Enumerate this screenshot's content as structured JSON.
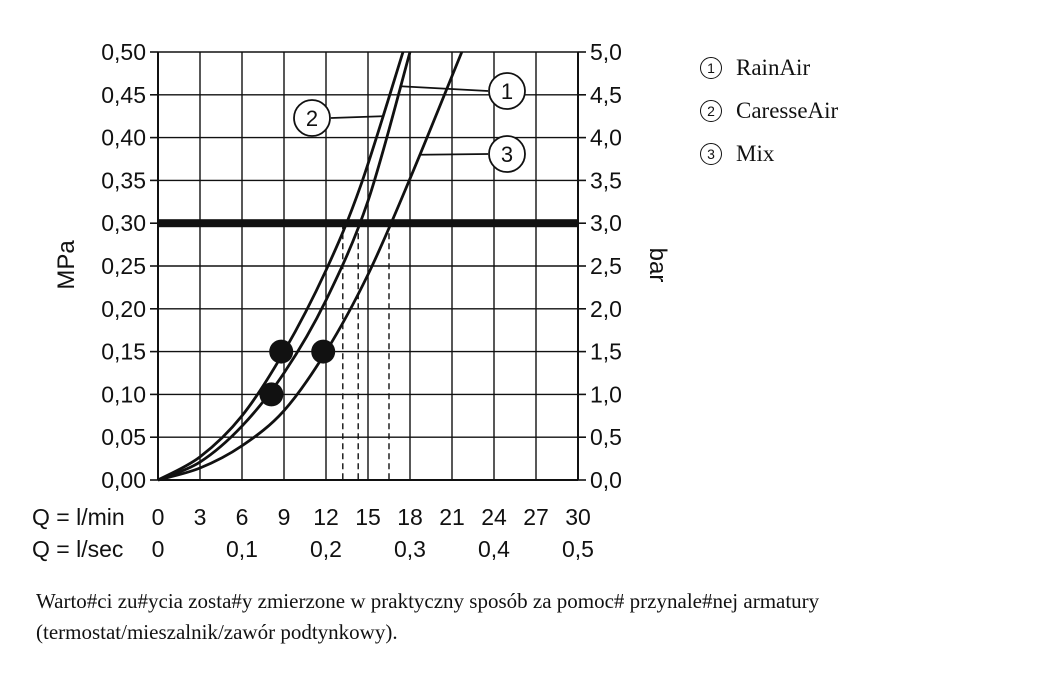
{
  "chart_data": {
    "type": "line",
    "xlabel_rows": [
      {
        "label": "Q = l/min",
        "ticks": [
          "0",
          "3",
          "6",
          "9",
          "12",
          "15",
          "18",
          "21",
          "24",
          "27",
          "30"
        ]
      },
      {
        "label": "Q = l/sec",
        "ticks": [
          "0",
          "0,1",
          "0,2",
          "0,3",
          "0,4",
          "0,5"
        ]
      }
    ],
    "ylabel_left": "MPa",
    "ylabel_right": "bar",
    "y_ticks_left": [
      "0,00",
      "0,05",
      "0,10",
      "0,15",
      "0,20",
      "0,25",
      "0,30",
      "0,35",
      "0,40",
      "0,45",
      "0,50"
    ],
    "y_ticks_right": [
      "0,0",
      "0,5",
      "1,0",
      "1,5",
      "2,0",
      "2,5",
      "3,0",
      "3,5",
      "4,0",
      "4,5",
      "5,0"
    ],
    "xlim": [
      0,
      30
    ],
    "ylim": [
      0,
      0.5
    ],
    "grid": true,
    "reference_line_y": 0.3,
    "series": [
      {
        "name": "1",
        "x": [
          0,
          3,
          6,
          9,
          12,
          15,
          18
        ],
        "y": [
          0,
          0.021,
          0.063,
          0.125,
          0.21,
          0.326,
          0.5
        ]
      },
      {
        "name": "2",
        "x": [
          0,
          3,
          6,
          9,
          12,
          14.5,
          17.5
        ],
        "y": [
          0,
          0.027,
          0.075,
          0.15,
          0.245,
          0.345,
          0.5
        ]
      },
      {
        "name": "3",
        "x": [
          0,
          3,
          6,
          9,
          12,
          15,
          18,
          21.7
        ],
        "y": [
          0,
          0.014,
          0.04,
          0.081,
          0.15,
          0.24,
          0.352,
          0.5
        ]
      }
    ],
    "markers": [
      {
        "series": "2",
        "x": 8.8,
        "y": 0.15
      },
      {
        "series": "1",
        "x": 8.1,
        "y": 0.1
      },
      {
        "series": "3",
        "x": 11.8,
        "y": 0.15
      }
    ],
    "drop_lines_x": [
      13.2,
      14.3,
      16.5
    ],
    "callouts": [
      {
        "series": "1",
        "text": "1"
      },
      {
        "series": "2",
        "text": "2"
      },
      {
        "series": "3",
        "text": "3"
      }
    ]
  },
  "legend": [
    {
      "num": "1",
      "label": "RainAir"
    },
    {
      "num": "2",
      "label": "CaresseAir"
    },
    {
      "num": "3",
      "label": "Mix"
    }
  ],
  "caption": {
    "line1": "Warto#ci zu#ycia zosta#y zmierzone w praktyczny sposób za pomoc# przynale#nej armatury",
    "line2": "(termostat/mieszalnik/zawór podtynkowy)."
  }
}
